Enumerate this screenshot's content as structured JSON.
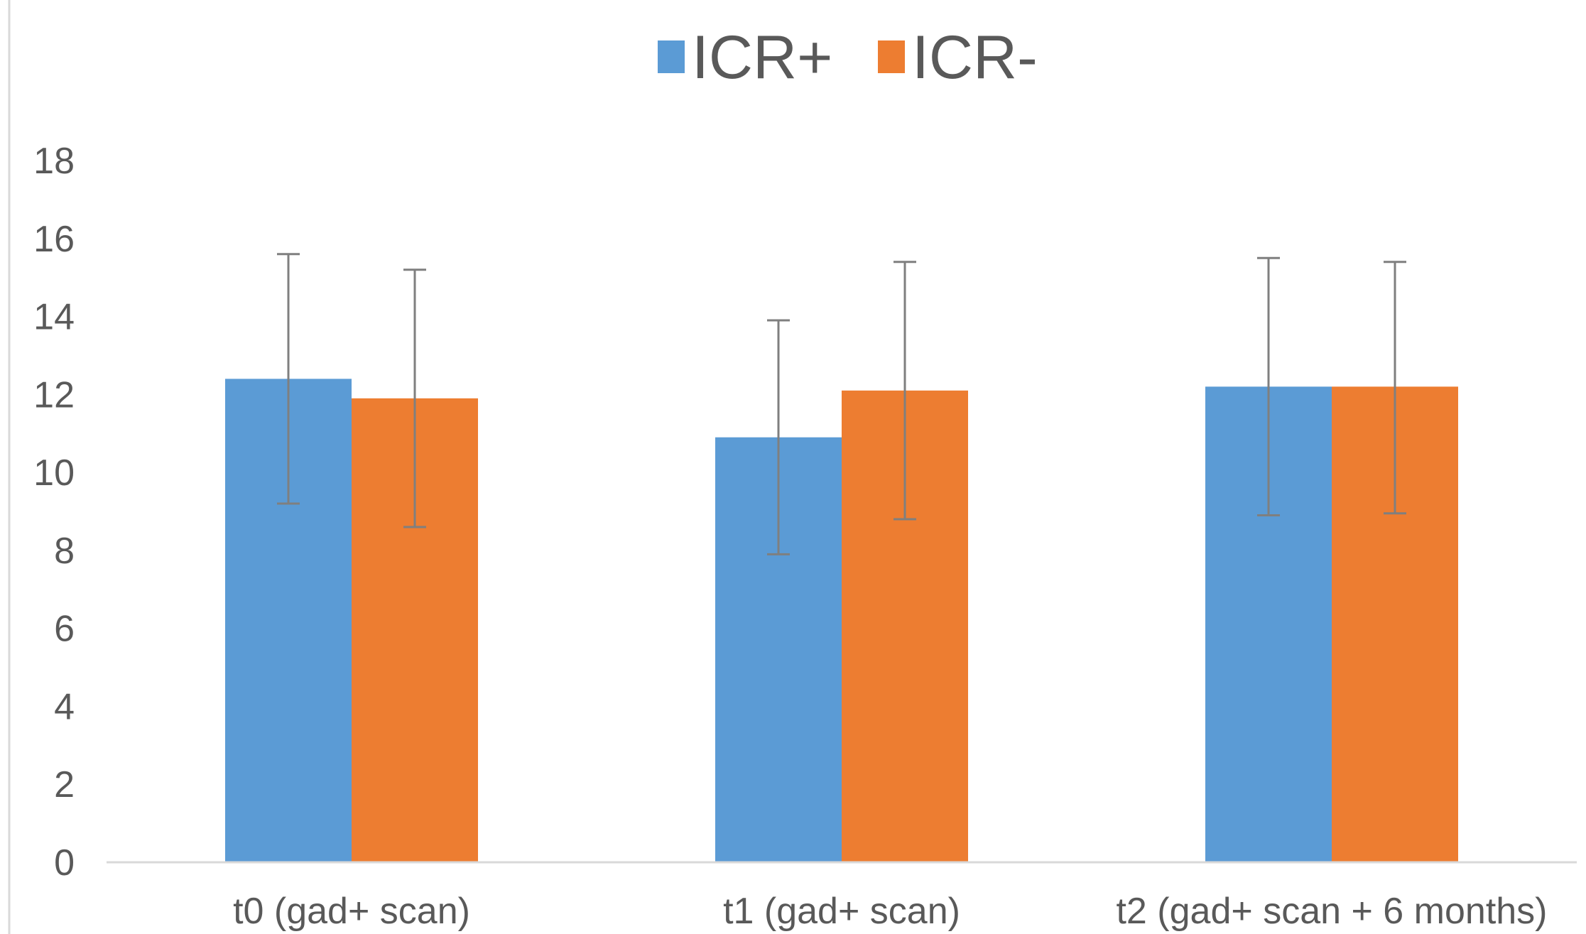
{
  "colors": {
    "series_1": "#5b9bd5",
    "series_2": "#ed7d31",
    "axis": "#d9d9d9",
    "error_bar": "#7f7f7f",
    "text": "#595959"
  },
  "chart_data": {
    "type": "bar",
    "title": "",
    "xlabel": "",
    "ylabel": "",
    "ylim": [
      0,
      18
    ],
    "yticks": [
      0,
      2,
      4,
      6,
      8,
      10,
      12,
      14,
      16,
      18
    ],
    "grid": false,
    "legend_position": "top",
    "categories": [
      "t0 (gad+ scan)",
      "t1 (gad+ scan)",
      "t2 (gad+ scan + 6 months)"
    ],
    "series": [
      {
        "name": "ICR+",
        "values": [
          12.4,
          10.9,
          12.2
        ],
        "error_low": [
          9.2,
          7.9,
          8.9
        ],
        "error_high": [
          15.6,
          13.9,
          15.5
        ]
      },
      {
        "name": "ICR-",
        "values": [
          11.9,
          12.1,
          12.2
        ],
        "error_low": [
          8.6,
          8.8,
          8.95
        ],
        "error_high": [
          15.2,
          15.4,
          15.4
        ]
      }
    ]
  }
}
